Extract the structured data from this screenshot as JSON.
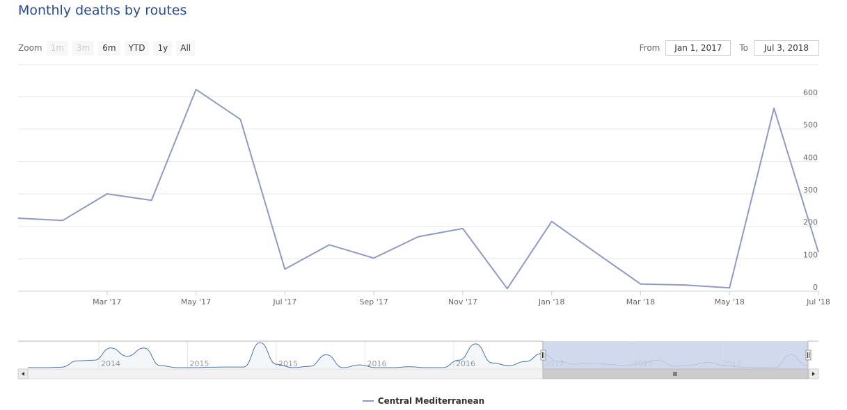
{
  "title": "Monthly deaths by routes",
  "zoom": {
    "label": "Zoom",
    "buttons": [
      {
        "label": "1m",
        "enabled": false
      },
      {
        "label": "3m",
        "enabled": false
      },
      {
        "label": "6m",
        "enabled": true
      },
      {
        "label": "YTD",
        "enabled": true
      },
      {
        "label": "1y",
        "enabled": true
      },
      {
        "label": "All",
        "enabled": true
      }
    ]
  },
  "range": {
    "from_label": "From",
    "from_value": "Jan 1, 2017",
    "to_label": "To",
    "to_value": "Jul 3, 2018"
  },
  "colors": {
    "series": "#8e9ac3",
    "navigator_series": "#4572a7",
    "navigator_mask": "#c9d2ea",
    "grid": "#e6e6e6",
    "axis": "#c0d0e0"
  },
  "chart_data": {
    "type": "line",
    "title": "Monthly deaths by routes",
    "x": [
      "2017-01",
      "2017-02",
      "2017-03",
      "2017-04",
      "2017-05",
      "2017-06",
      "2017-07",
      "2017-08",
      "2017-09",
      "2017-10",
      "2017-11",
      "2017-12",
      "2018-01",
      "2018-02",
      "2018-03",
      "2018-04",
      "2018-05",
      "2018-06",
      "2018-07"
    ],
    "x_tick_labels": [
      {
        "x": "2017-03",
        "label": "Mar '17"
      },
      {
        "x": "2017-05",
        "label": "May '17"
      },
      {
        "x": "2017-07",
        "label": "Jul '17"
      },
      {
        "x": "2017-09",
        "label": "Sep '17"
      },
      {
        "x": "2017-11",
        "label": "Nov '17"
      },
      {
        "x": "2018-01",
        "label": "Jan '18"
      },
      {
        "x": "2018-03",
        "label": "Mar '18"
      },
      {
        "x": "2018-05",
        "label": "May '18"
      },
      {
        "x": "2018-07",
        "label": "Jul '18"
      }
    ],
    "series": [
      {
        "name": "Central Mediterranean",
        "values": [
          225,
          218,
          300,
          280,
          622,
          530,
          68,
          143,
          102,
          168,
          193,
          8,
          215,
          118,
          22,
          19,
          10,
          564,
          120
        ]
      }
    ],
    "ylim": [
      0,
      600
    ],
    "yticks": [
      0,
      100,
      200,
      300,
      400,
      500,
      600
    ],
    "y_axis_side": "right",
    "grid": true,
    "legend": "bottom-center",
    "navigator": {
      "year_labels": [
        "2014",
        "2015",
        "2015",
        "2016",
        "2016",
        "2017",
        "2017",
        "2018"
      ],
      "selected_from": "2017-01",
      "selected_to": "2018-07",
      "values": [
        5,
        5,
        8,
        55,
        60,
        150,
        90,
        150,
        20,
        5,
        5,
        8,
        10,
        10,
        190,
        30,
        5,
        15,
        100,
        5,
        25,
        5,
        5,
        12,
        5,
        5,
        60,
        180,
        40,
        20,
        50,
        110,
        50,
        30,
        40,
        30,
        20,
        40,
        60,
        15,
        25,
        45,
        20,
        10,
        5,
        5,
        100,
        20
      ]
    }
  }
}
